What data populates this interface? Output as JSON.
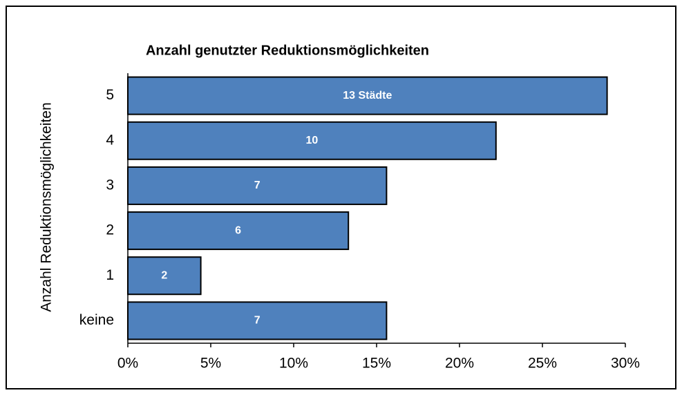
{
  "chart_data": {
    "type": "hbar",
    "title": "Anzahl genutzter Reduktionsmöglichkeiten",
    "y_label": "Anzahl Reduktionsmöglichkeiten",
    "categories": [
      "5",
      "4",
      "3",
      "2",
      "1",
      "keine"
    ],
    "values": [
      28.9,
      22.2,
      15.6,
      13.3,
      4.4,
      15.6
    ],
    "bar_labels": [
      "13 Städte",
      "10",
      "7",
      "6",
      "2",
      "7"
    ],
    "color": "#4f81bd",
    "xlim": [
      0,
      30
    ],
    "xticks": [
      {
        "value": 0,
        "label": "0%"
      },
      {
        "value": 5,
        "label": "5%"
      },
      {
        "value": 10,
        "label": "10%"
      },
      {
        "value": 15,
        "label": "15%"
      },
      {
        "value": 20,
        "label": "20%"
      },
      {
        "value": 25,
        "label": "25%"
      },
      {
        "value": 30,
        "label": "30%"
      }
    ]
  }
}
